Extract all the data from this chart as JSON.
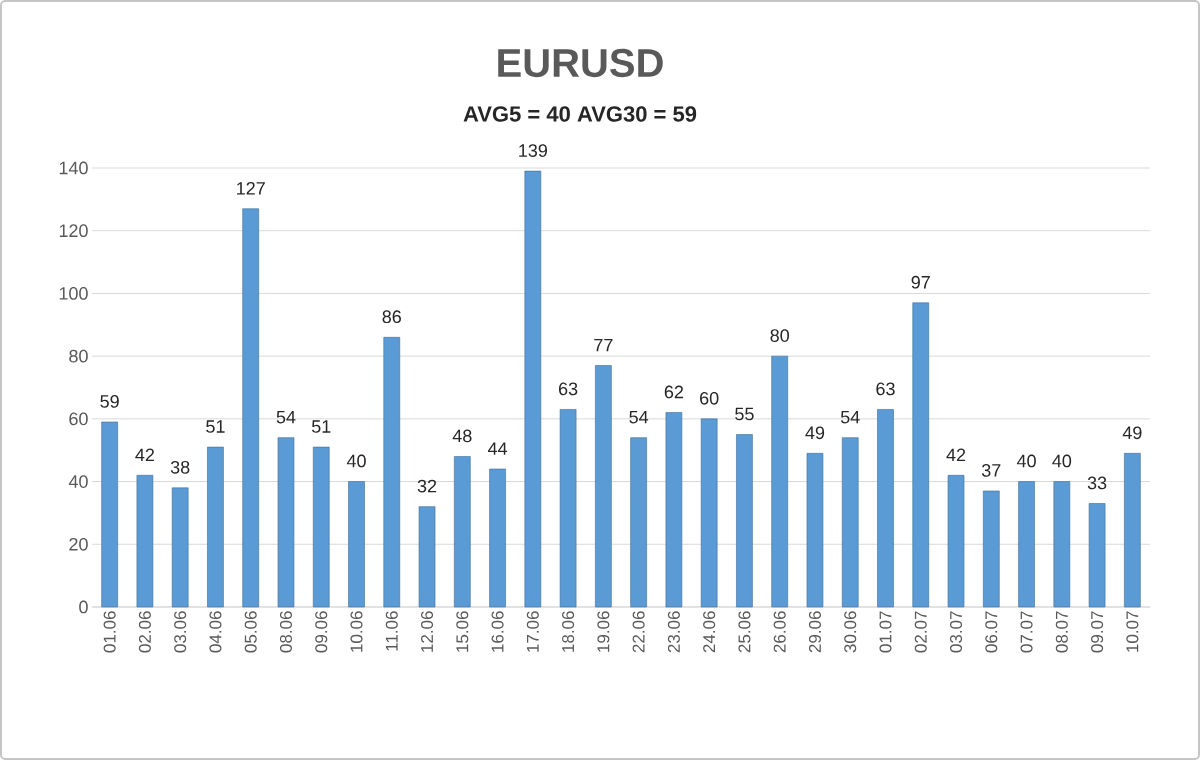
{
  "chart_data": {
    "type": "bar",
    "title": "EURUSD",
    "subtitle": "AVG5 = 40 AVG30 = 59",
    "categories": [
      "01.06",
      "02.06",
      "03.06",
      "04.06",
      "05.06",
      "08.06",
      "09.06",
      "10.06",
      "11.06",
      "12.06",
      "15.06",
      "16.06",
      "17.06",
      "18.06",
      "19.06",
      "22.06",
      "23.06",
      "24.06",
      "25.06",
      "26.06",
      "29.06",
      "30.06",
      "01.07",
      "02.07",
      "03.07",
      "06.07",
      "07.07",
      "08.07",
      "09.07",
      "10.07"
    ],
    "values": [
      59,
      42,
      38,
      51,
      127,
      54,
      51,
      40,
      86,
      32,
      48,
      44,
      139,
      63,
      77,
      54,
      62,
      60,
      55,
      80,
      49,
      54,
      63,
      97,
      42,
      37,
      40,
      40,
      33,
      49
    ],
    "color": "#5b9bd5",
    "ylim": [
      0,
      140
    ],
    "yticks": [
      0,
      20,
      40,
      60,
      80,
      100,
      120,
      140
    ],
    "grid": "y",
    "data_labels": true
  }
}
